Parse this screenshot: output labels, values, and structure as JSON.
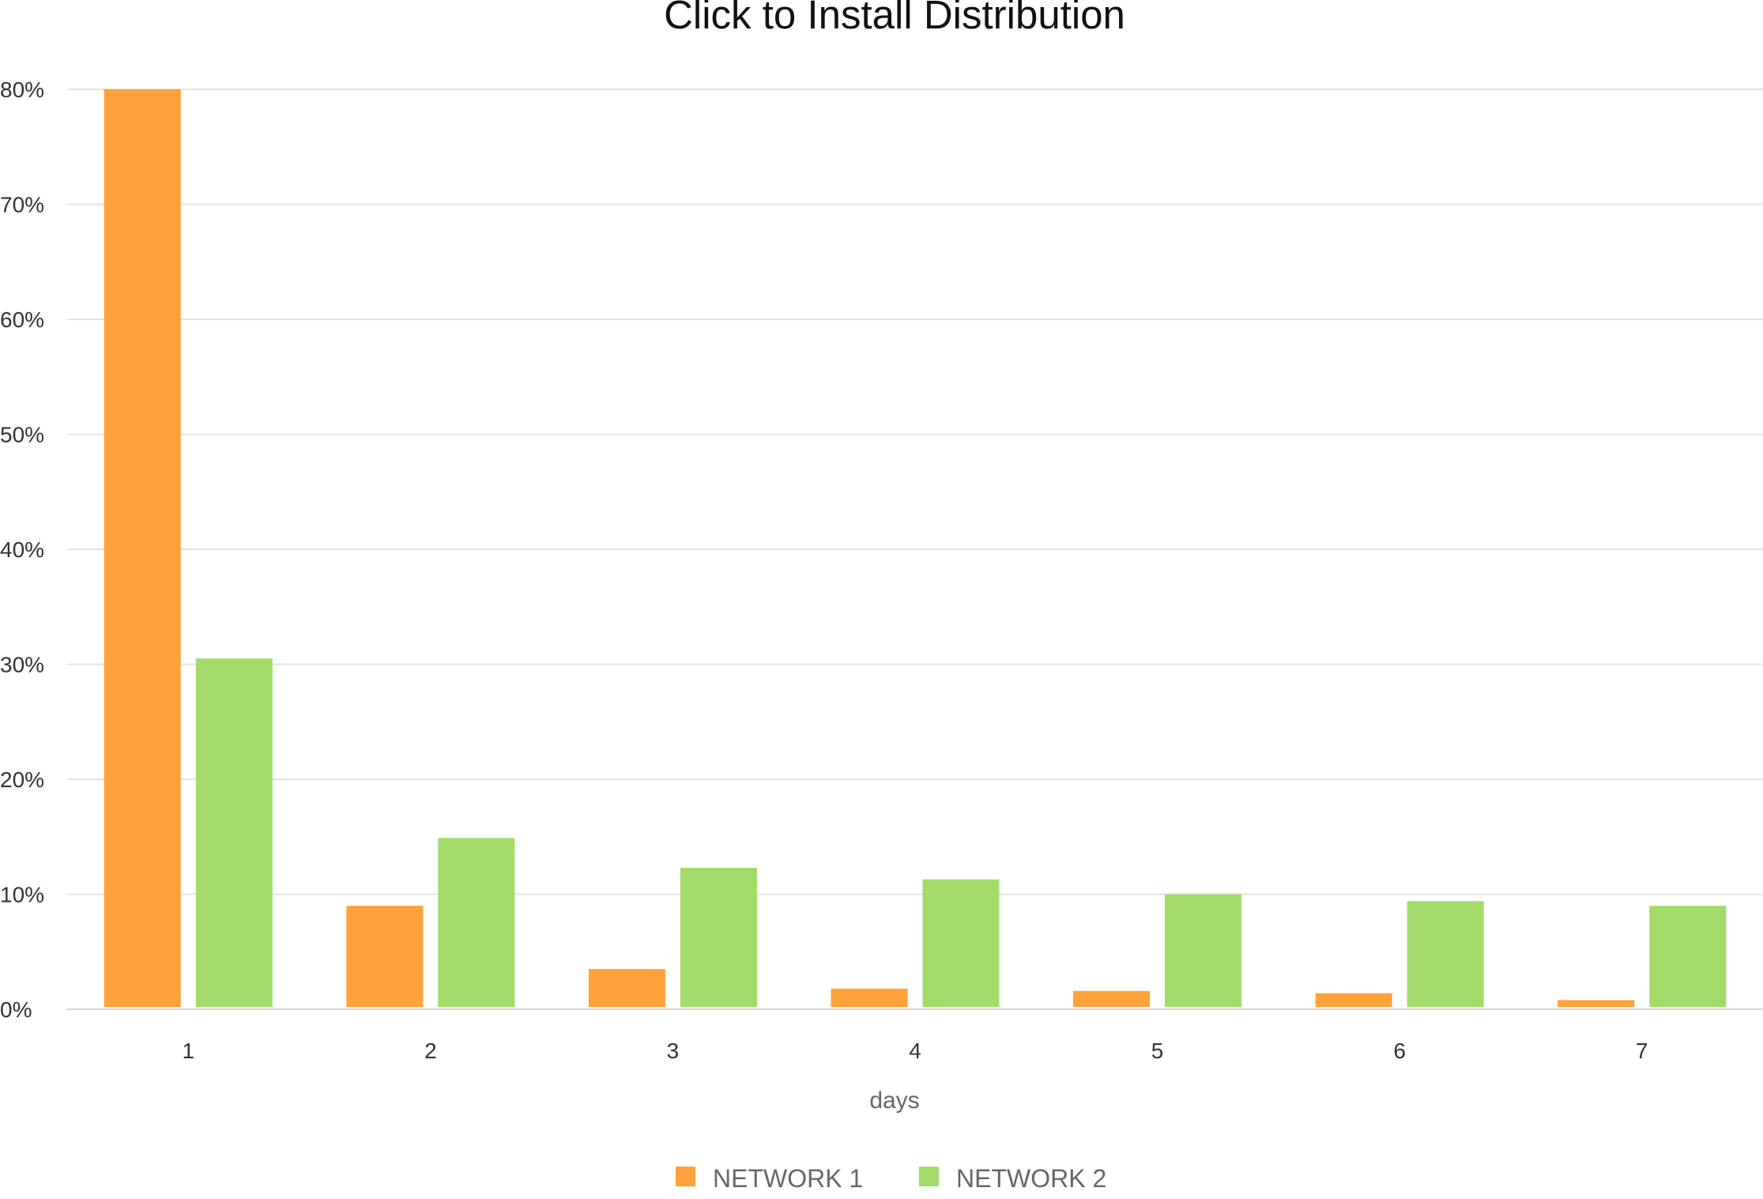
{
  "chart_data": {
    "type": "bar",
    "title": "Click to Install Distribution",
    "xlabel": "days",
    "ylabel": "",
    "categories": [
      "1",
      "2",
      "3",
      "4",
      "5",
      "6",
      "7"
    ],
    "series": [
      {
        "name": "NETWORK 1",
        "color": "#FFA23A",
        "values": [
          80,
          9,
          3.5,
          1.8,
          1.6,
          1.4,
          0.8
        ]
      },
      {
        "name": "NETWORK 2",
        "color": "#A2DB6A",
        "values": [
          30.5,
          14.9,
          12.3,
          11.3,
          10,
          9.4,
          9
        ]
      }
    ],
    "ylim": [
      0,
      80
    ],
    "yticks": [
      "0%",
      "10%",
      "20%",
      "30%",
      "40%",
      "50%",
      "60%",
      "70%",
      "80%"
    ],
    "grid": true,
    "legend_position": "bottom-center"
  }
}
